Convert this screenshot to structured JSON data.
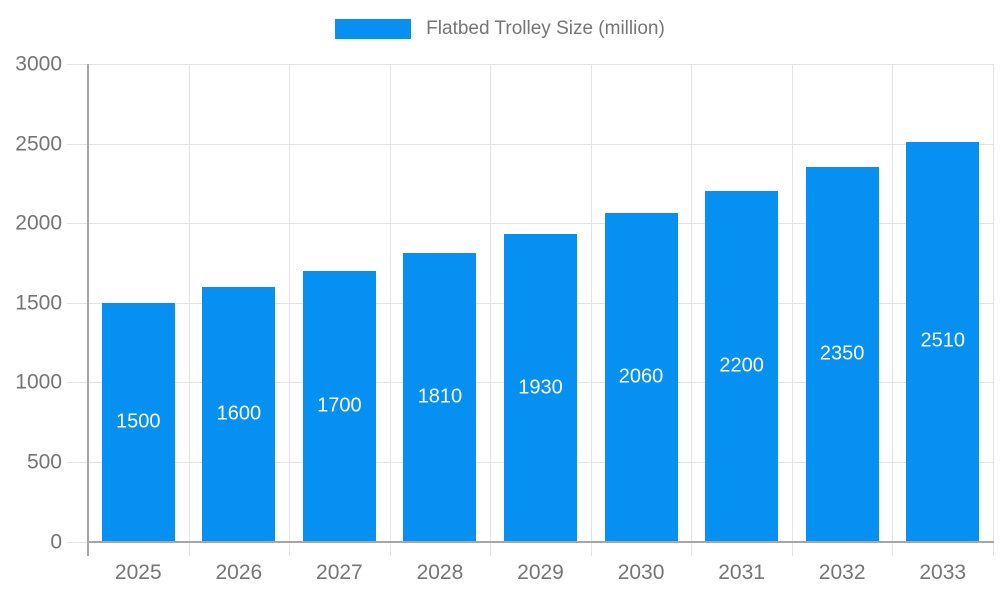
{
  "legend": {
    "label": "Flatbed Trolley Size (million)"
  },
  "colors": {
    "bar": "#0590F2",
    "axis": "#A6A6A6",
    "grid": "#E3E3E3",
    "text": "#757575",
    "value_label": "#FFFFFF"
  },
  "chart_data": {
    "type": "bar",
    "title": "Flatbed Trolley Size (million)",
    "categories": [
      "2025",
      "2026",
      "2027",
      "2028",
      "2029",
      "2030",
      "2031",
      "2032",
      "2033"
    ],
    "values": [
      1500,
      1600,
      1700,
      1810,
      1930,
      2060,
      2200,
      2350,
      2510
    ],
    "xlabel": "",
    "ylabel": "",
    "ylim": [
      0,
      3000
    ],
    "yticks": [
      0,
      500,
      1000,
      1500,
      2000,
      2500,
      3000
    ],
    "grid": true,
    "legend_position": "top",
    "value_labels": "inside-white"
  }
}
